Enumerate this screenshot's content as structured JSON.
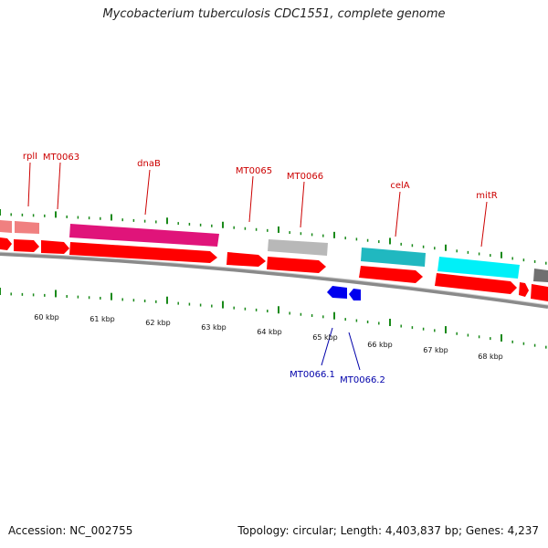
{
  "title": "Mycobacterium tuberculosis CDC1551, complete genome",
  "footer": {
    "accession": "Accession: NC_002755",
    "topology": "Topology: circular; Length: 4,403,837 bp; Genes: 4,237"
  },
  "colors": {
    "label_red": "#cc0000",
    "label_blue": "#0000aa",
    "tick_green": "#1a8a1a",
    "gene_red": "#ff0000",
    "gene_pink": "#e0147a",
    "gene_salmon": "#f08080",
    "gene_gray": "#b0b0b0",
    "gene_teal": "#20b8c0",
    "gene_cyan": "#00f0f8",
    "gene_dark_gray": "#707070",
    "gene_blue": "#0000ee",
    "backbone": "#7a7a7a"
  },
  "gene_labels": [
    {
      "id": "rplI",
      "text": "rplI",
      "color": "red"
    },
    {
      "id": "MT0063",
      "text": "MT0063",
      "color": "red"
    },
    {
      "id": "dnaB",
      "text": "dnaB",
      "color": "red"
    },
    {
      "id": "MT0065",
      "text": "MT0065",
      "color": "red"
    },
    {
      "id": "MT0066",
      "text": "MT0066",
      "color": "red"
    },
    {
      "id": "celA",
      "text": "celA",
      "color": "red"
    },
    {
      "id": "mitR",
      "text": "mitR",
      "color": "red"
    },
    {
      "id": "MT0066.1",
      "text": "MT0066.1",
      "color": "blue"
    },
    {
      "id": "MT0066.2",
      "text": "MT0066.2",
      "color": "blue"
    }
  ],
  "scale_labels": [
    "60 kbp",
    "61 kbp",
    "62 kbp",
    "63 kbp",
    "64 kbp",
    "65 kbp",
    "66 kbp",
    "67 kbp",
    "68 kbp"
  ]
}
